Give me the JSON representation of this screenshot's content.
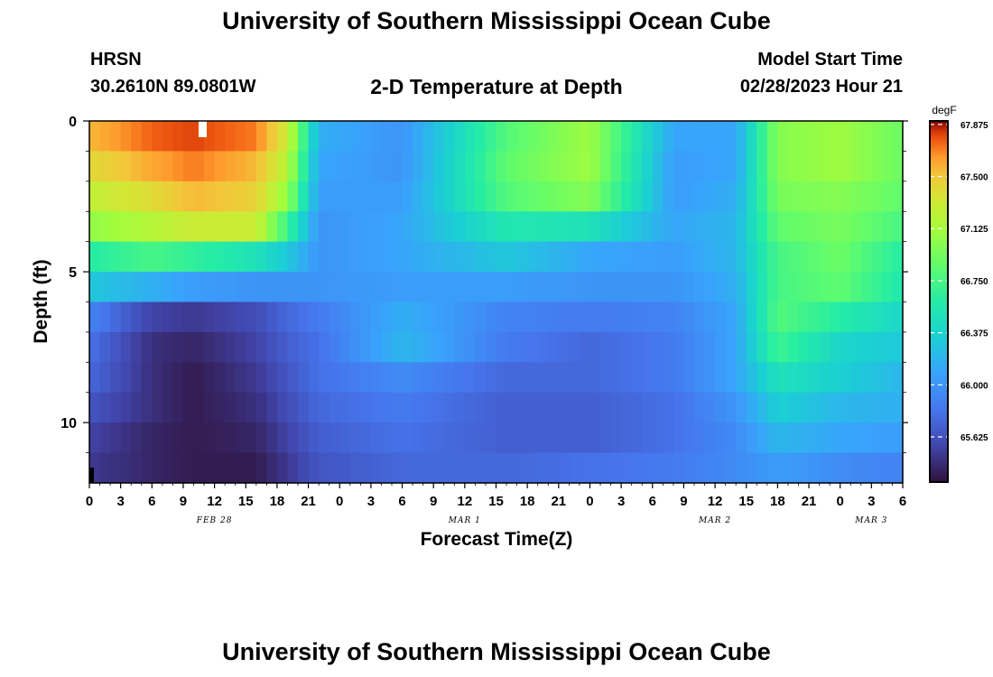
{
  "header": {
    "title": "University of Southern Mississippi Ocean Cube",
    "station": "HRSN",
    "coords": "30.2610N  89.0801W",
    "plot_title": "2-D Temperature at Depth",
    "start_label": "Model Start Time",
    "start_value": "02/28/2023 Hour 21"
  },
  "footer": {
    "title": "University of Southern Mississippi Ocean Cube"
  },
  "chart_data": {
    "type": "heatmap",
    "title": "2-D Temperature at Depth",
    "xlabel": "Forecast Time(Z)",
    "ylabel": "Depth (ft)",
    "x_range_hours": [
      0,
      78
    ],
    "y_range_ft": [
      0,
      12
    ],
    "x_ticks": [
      "0",
      "3",
      "6",
      "9",
      "12",
      "15",
      "18",
      "21",
      "0",
      "3",
      "6",
      "9",
      "12",
      "15",
      "18",
      "21",
      "0",
      "3",
      "6",
      "9",
      "12",
      "15",
      "18",
      "21",
      "0",
      "3",
      "6"
    ],
    "x_tick_hours": [
      0,
      3,
      6,
      9,
      12,
      15,
      18,
      21,
      24,
      27,
      30,
      33,
      36,
      39,
      42,
      45,
      48,
      51,
      54,
      57,
      60,
      63,
      66,
      69,
      72,
      75,
      78
    ],
    "date_labels": [
      {
        "text": "FEB 28",
        "hour": 12
      },
      {
        "text": "MAR 1",
        "hour": 36
      },
      {
        "text": "MAR 2",
        "hour": 60
      },
      {
        "text": "MAR 3",
        "hour": 75
      }
    ],
    "y_ticks": [
      "0",
      "5",
      "10"
    ],
    "y_tick_values": [
      0,
      5,
      10
    ],
    "colorbar": {
      "unit": "degF",
      "range": [
        65.3,
        67.9
      ],
      "ticks": [
        "67.875",
        "67.500",
        "67.125",
        "66.750",
        "66.375",
        "66.000",
        "65.625"
      ],
      "tick_values": [
        67.875,
        67.5,
        67.125,
        66.75,
        66.375,
        66.0,
        65.625
      ]
    },
    "depth_layers_ft": [
      0.5,
      1.5,
      2.5,
      3.5,
      4.5,
      5.5,
      6.5,
      7.5,
      8.5,
      9.5,
      10.5,
      11.5
    ],
    "time_knots_hours": [
      0,
      6,
      10,
      16,
      19,
      22,
      30,
      40,
      48,
      56,
      62,
      66,
      72,
      78
    ],
    "temperature_degF": [
      [
        67.55,
        67.75,
        67.8,
        67.7,
        67.3,
        66.15,
        66.0,
        66.8,
        67.1,
        66.1,
        66.1,
        67.0,
        67.1,
        66.9
      ],
      [
        67.4,
        67.6,
        67.7,
        67.55,
        67.2,
        66.1,
        66.0,
        66.85,
        67.1,
        66.05,
        66.1,
        67.0,
        67.1,
        66.9
      ],
      [
        67.25,
        67.4,
        67.55,
        67.45,
        67.05,
        66.05,
        66.05,
        66.8,
        67.0,
        66.05,
        66.15,
        66.95,
        67.0,
        66.85
      ],
      [
        67.05,
        67.2,
        67.3,
        67.3,
        66.7,
        66.0,
        66.1,
        66.55,
        66.5,
        66.1,
        66.2,
        66.85,
        66.95,
        66.75
      ],
      [
        66.6,
        66.75,
        66.65,
        66.5,
        66.3,
        66.0,
        66.1,
        66.3,
        66.1,
        66.05,
        66.2,
        66.75,
        66.9,
        66.6
      ],
      [
        66.3,
        66.15,
        66.05,
        66.0,
        66.0,
        66.0,
        66.05,
        66.05,
        66.0,
        66.0,
        66.15,
        66.75,
        66.85,
        66.55
      ],
      [
        65.9,
        65.55,
        65.5,
        65.6,
        65.75,
        65.85,
        66.15,
        65.9,
        65.85,
        65.9,
        66.1,
        66.8,
        66.6,
        66.4
      ],
      [
        65.8,
        65.45,
        65.4,
        65.55,
        65.7,
        65.8,
        66.2,
        65.85,
        65.75,
        65.85,
        66.1,
        66.7,
        66.4,
        66.3
      ],
      [
        65.75,
        65.45,
        65.35,
        65.5,
        65.65,
        65.8,
        65.95,
        65.75,
        65.75,
        65.85,
        66.1,
        66.5,
        66.35,
        66.2
      ],
      [
        65.65,
        65.45,
        65.35,
        65.45,
        65.6,
        65.75,
        65.85,
        65.7,
        65.7,
        65.8,
        66.0,
        66.35,
        66.2,
        66.15
      ],
      [
        65.55,
        65.4,
        65.35,
        65.4,
        65.55,
        65.7,
        65.8,
        65.7,
        65.7,
        65.8,
        65.95,
        66.2,
        66.1,
        66.05
      ],
      [
        65.5,
        65.4,
        65.35,
        65.35,
        65.5,
        65.65,
        65.75,
        65.75,
        65.8,
        65.85,
        65.95,
        66.05,
        65.95,
        65.9
      ]
    ]
  }
}
